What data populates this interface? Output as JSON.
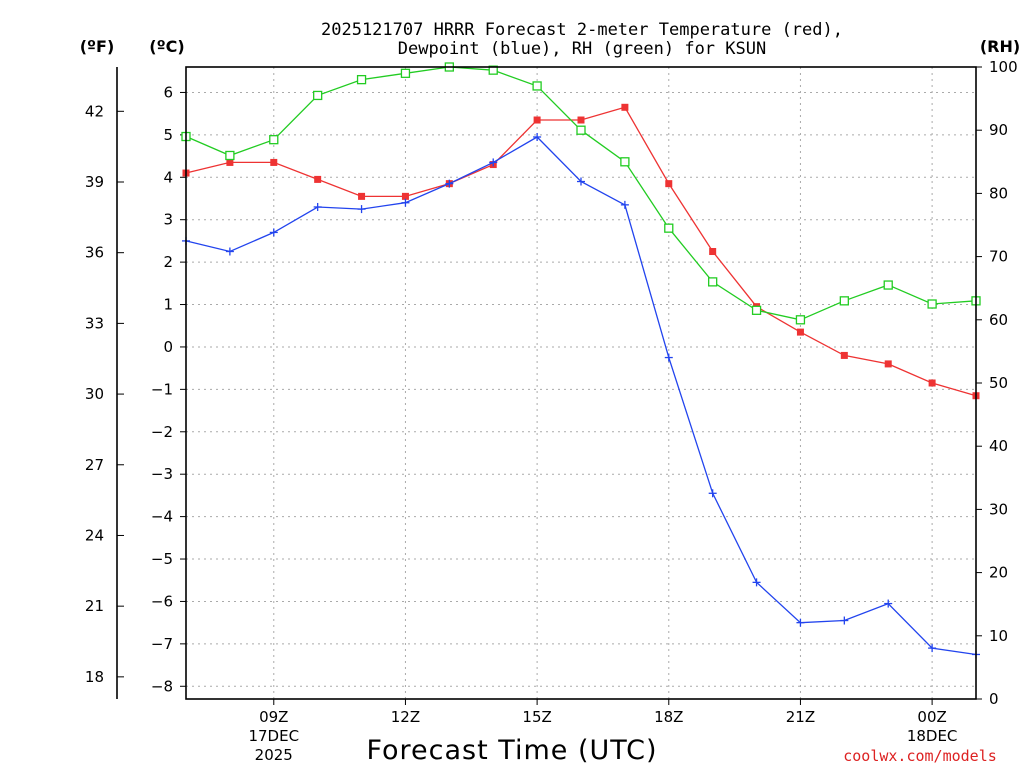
{
  "chart_data": {
    "type": "line",
    "title_line1": "2025121707 HRRR Forecast 2-meter Temperature (red),",
    "title_line2": "Dewpoint (blue), RH (green) for KSUN",
    "xlabel": "Forecast Time (UTC)",
    "credit": "coolwx.com/models",
    "units": {
      "f": "(ºF)",
      "c": "(ºC)",
      "rh": "(RH)"
    },
    "hours": [
      7,
      8,
      9,
      10,
      11,
      12,
      13,
      14,
      15,
      16,
      17,
      18,
      19,
      20,
      21,
      22,
      23,
      24,
      25
    ],
    "xlim": [
      7,
      25
    ],
    "x_ticks": [
      {
        "h": 9,
        "label": "09Z",
        "sub1": "17DEC",
        "sub2": "2025"
      },
      {
        "h": 12,
        "label": "12Z",
        "sub1": "",
        "sub2": ""
      },
      {
        "h": 15,
        "label": "15Z",
        "sub1": "",
        "sub2": ""
      },
      {
        "h": 18,
        "label": "18Z",
        "sub1": "",
        "sub2": ""
      },
      {
        "h": 21,
        "label": "21Z",
        "sub1": "",
        "sub2": ""
      },
      {
        "h": 24,
        "label": "00Z",
        "sub1": "18DEC",
        "sub2": ""
      }
    ],
    "c_axis": {
      "min": -8.3,
      "max": 6.6,
      "ticks": [
        "6",
        "5",
        "4",
        "3",
        "2",
        "1",
        "0",
        "−1",
        "−2",
        "−3",
        "−4",
        "−5",
        "−6",
        "−7",
        "−8"
      ],
      "tick_values": [
        6,
        5,
        4,
        3,
        2,
        1,
        0,
        -1,
        -2,
        -3,
        -4,
        -5,
        -6,
        -7,
        -8
      ]
    },
    "f_axis": {
      "ticks": [
        "42",
        "39",
        "36",
        "33",
        "30",
        "27",
        "24",
        "21",
        "18"
      ],
      "tick_values": [
        42,
        39,
        36,
        33,
        30,
        27,
        24,
        21,
        18
      ]
    },
    "rh_axis": {
      "min": 0,
      "max": 100,
      "ticks": [
        "100",
        "90",
        "80",
        "70",
        "60",
        "50",
        "40",
        "30",
        "20",
        "10",
        "0"
      ],
      "tick_values": [
        100,
        90,
        80,
        70,
        60,
        50,
        40,
        30,
        20,
        10,
        0
      ]
    },
    "series": [
      {
        "name": "Temperature",
        "axis": "c",
        "color": "#ee3333",
        "marker": "filled-square",
        "values": [
          4.1,
          4.35,
          4.35,
          3.95,
          3.55,
          3.55,
          3.85,
          4.3,
          5.35,
          5.35,
          5.65,
          3.85,
          2.25,
          0.95,
          0.35,
          -0.2,
          -0.4,
          -0.85,
          -1.15
        ]
      },
      {
        "name": "Dewpoint",
        "axis": "c",
        "color": "#2244ee",
        "marker": "plus",
        "values": [
          2.5,
          2.25,
          2.7,
          3.3,
          3.25,
          3.4,
          3.85,
          4.35,
          4.95,
          3.9,
          3.35,
          -0.25,
          -3.45,
          -5.55,
          -6.5,
          -6.45,
          -6.05,
          -7.1,
          -7.25
        ]
      },
      {
        "name": "RH",
        "axis": "rh",
        "color": "#22cc22",
        "marker": "open-square",
        "values": [
          89,
          86,
          88.5,
          95.5,
          98,
          99,
          100,
          99.5,
          97,
          90,
          85,
          74.5,
          66,
          61.5,
          60,
          63,
          65.5,
          62.5,
          63
        ]
      }
    ]
  }
}
